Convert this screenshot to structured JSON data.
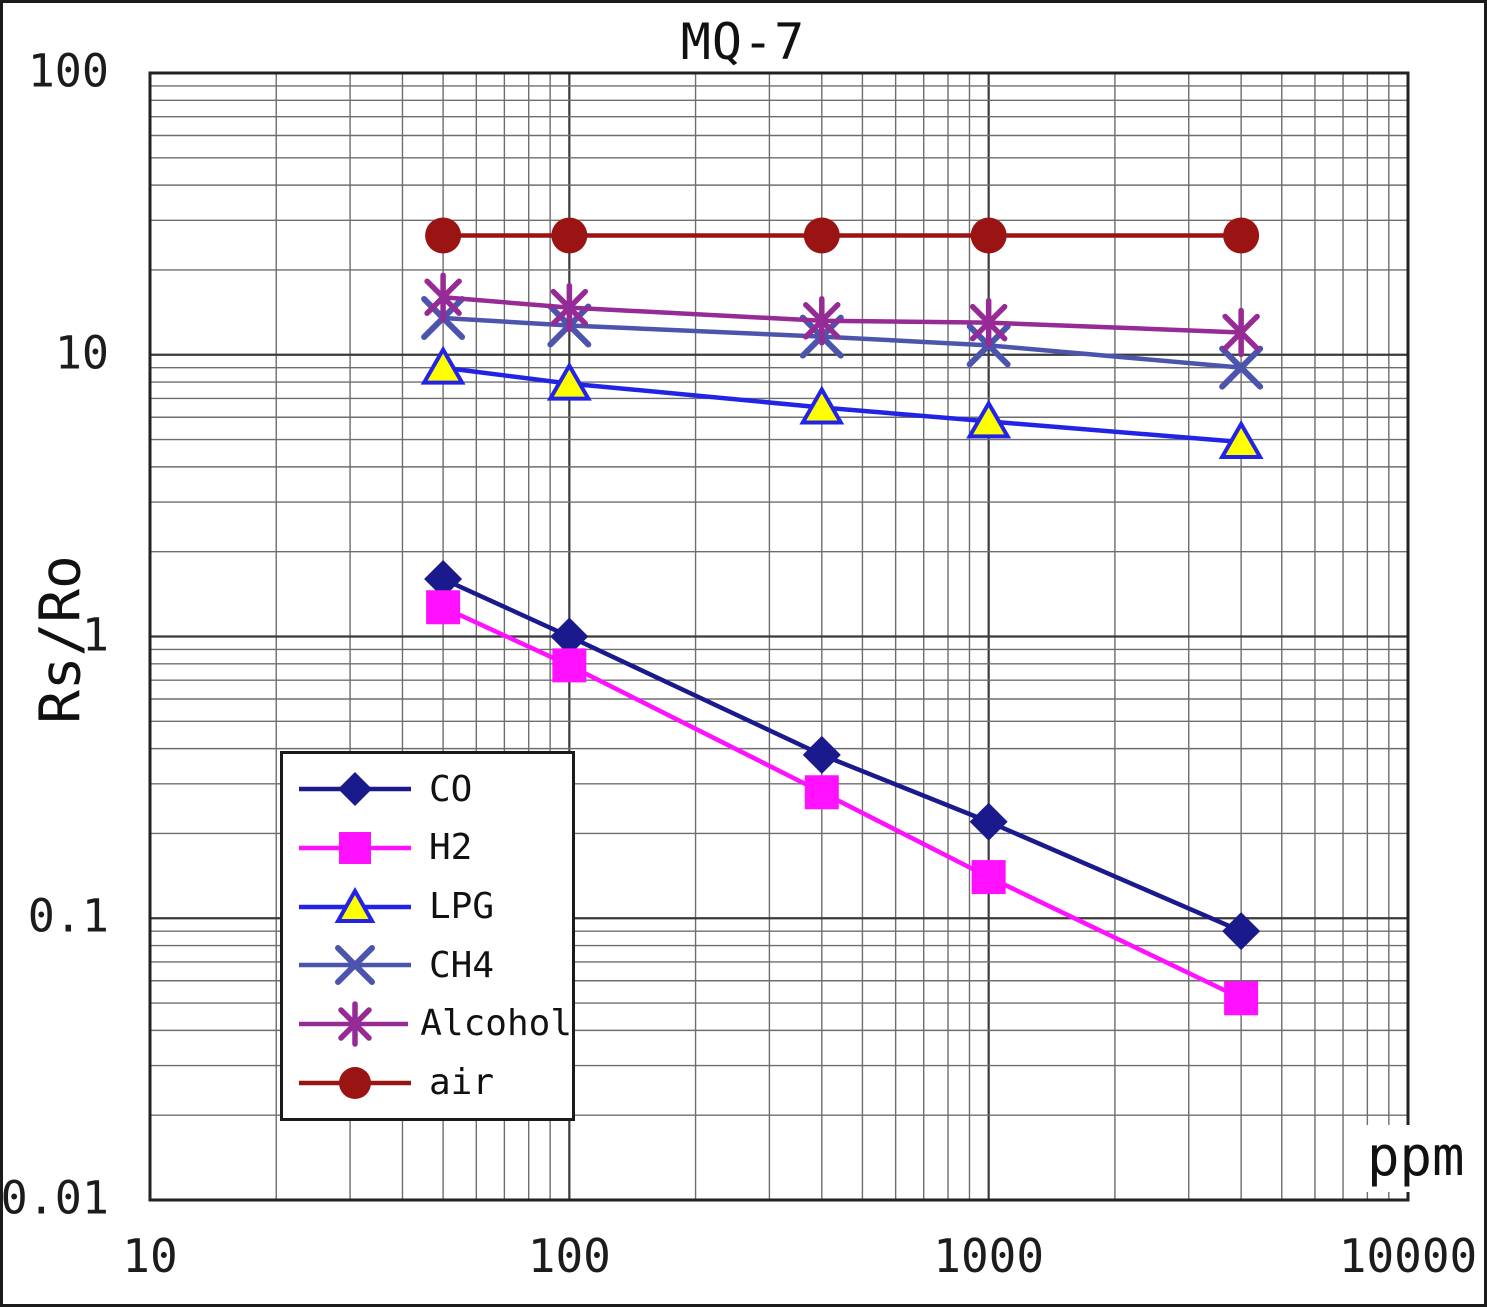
{
  "chart_data": {
    "type": "line",
    "title": "MQ-7",
    "xlabel": "ppm",
    "ylabel": "Rs/Ro",
    "x_scale": "log",
    "y_scale": "log",
    "xlim": [
      10,
      10000
    ],
    "ylim": [
      0.01,
      100
    ],
    "x_ticks": [
      "10",
      "100",
      "1000",
      "10000"
    ],
    "y_ticks": [
      "100",
      "10",
      "1",
      "0.1",
      "0.01"
    ],
    "grid": "full log-log grid with minor lines",
    "legend_position": "lower-left",
    "x": [
      50,
      100,
      400,
      1000,
      4000
    ],
    "series": [
      {
        "name": "CO",
        "color": "#1a1a8c",
        "marker": "diamond",
        "values": [
          1.6,
          1.0,
          0.38,
          0.22,
          0.09
        ]
      },
      {
        "name": "H2",
        "color": "#ff10ff",
        "marker": "square",
        "values": [
          1.27,
          0.79,
          0.28,
          0.14,
          0.052
        ]
      },
      {
        "name": "LPG",
        "color": "#2323e6",
        "marker": "triangle",
        "marker_fill": "#ffff00",
        "values": [
          9.0,
          7.9,
          6.5,
          5.8,
          4.9
        ]
      },
      {
        "name": "CH4",
        "color": "#4c55ab",
        "marker": "x",
        "values": [
          13.5,
          12.7,
          11.6,
          10.8,
          9.0
        ]
      },
      {
        "name": "Alcohol",
        "color": "#962b96",
        "marker": "asterisk",
        "values": [
          16.0,
          14.7,
          13.2,
          13.0,
          12.0
        ]
      },
      {
        "name": "air",
        "color": "#9a1414",
        "marker": "circle",
        "values": [
          26.5,
          26.5,
          26.5,
          26.5,
          26.5
        ]
      }
    ]
  },
  "colors": {
    "grid_minor": "#6e6e6e",
    "grid_major": "#3a3a3a",
    "plot_border": "#222222",
    "text": "#111111"
  }
}
